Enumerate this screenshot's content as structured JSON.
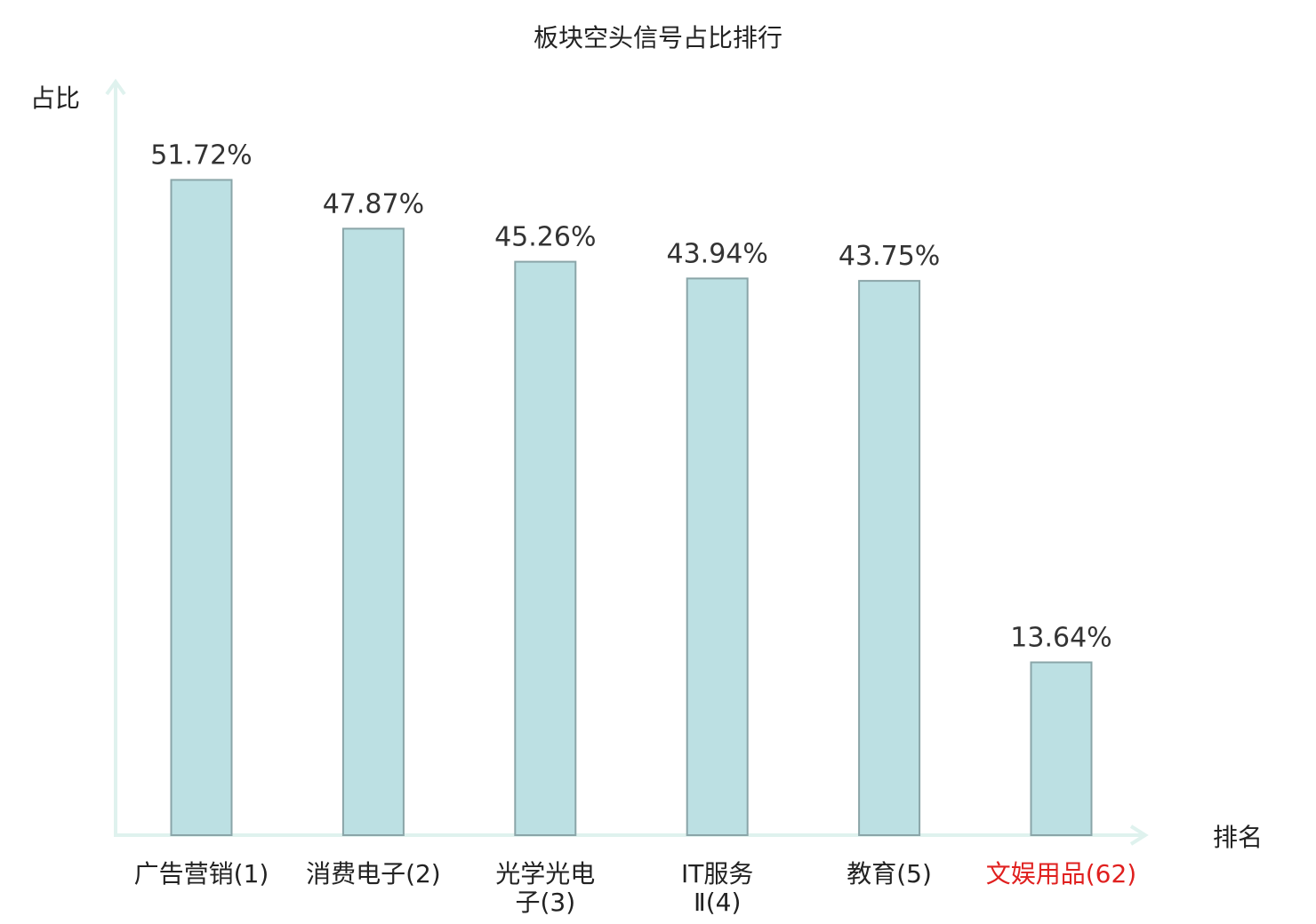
{
  "chart_data": {
    "type": "bar",
    "title": "板块空头信号占比排行",
    "ylabel": "占比",
    "xlabel": "排名",
    "categories": [
      "广告营销(1)",
      "消费电子(2)",
      "光学光电子(3)",
      "IT服务Ⅱ(4)",
      "教育(5)",
      "文娱用品(62)"
    ],
    "category_lines": [
      [
        "广告营销(1)"
      ],
      [
        "消费电子(2)"
      ],
      [
        "光学光电",
        "子(3)"
      ],
      [
        "IT服务",
        "Ⅱ(4)"
      ],
      [
        "教育(5)"
      ],
      [
        "文娱用品(62)"
      ]
    ],
    "values": [
      51.72,
      47.87,
      45.26,
      43.94,
      43.75,
      13.64
    ],
    "value_labels": [
      "51.72%",
      "47.87%",
      "45.26%",
      "43.94%",
      "43.75%",
      "13.64%"
    ],
    "highlight_index": 5,
    "ylim": [
      0,
      60
    ],
    "grid": false
  },
  "colors": {
    "bar_fill": "#bce0e3",
    "bar_stroke": "#8aa5a8",
    "axis": "#dff2ee",
    "highlight_label": "#e0201f",
    "text": "#222222"
  }
}
